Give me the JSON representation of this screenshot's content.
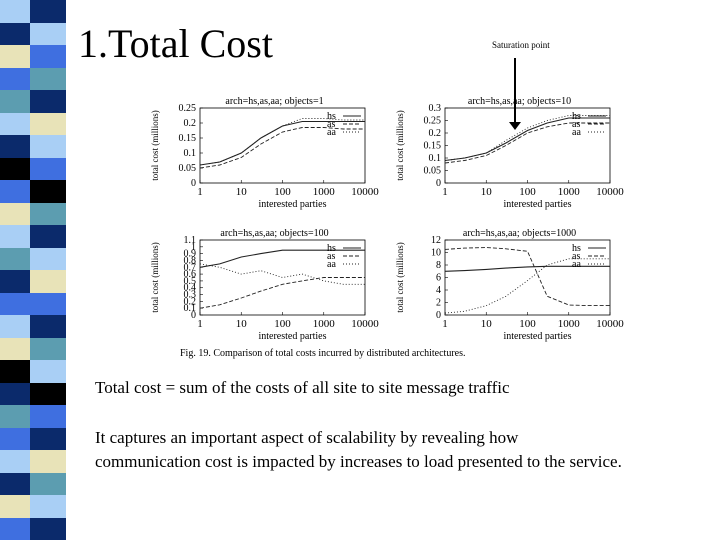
{
  "slide": {
    "title": "1.Total Cost",
    "annotation": "Saturation point",
    "caption": "Fig. 19.   Comparison of total costs incurred by distributed architectures.",
    "paragraph1": "Total cost = sum of the costs of all site to site message traffic",
    "paragraph2_line1": "It captures an important aspect of scalability by revealing how",
    "paragraph2_line2": "communication cost is impacted by increases to load presented to the service."
  },
  "colors": {
    "stripe_dark": "#0b2a6b",
    "stripe_blue": "#3f6fe0",
    "stripe_light": "#a9cff5",
    "stripe_teal": "#5c9db0",
    "stripe_cream": "#e8e3b8",
    "stripe_black": "#000000"
  },
  "chart_data": [
    {
      "type": "line",
      "title": "arch=hs,as,aa; objects=1",
      "xlabel": "interested parties",
      "ylabel": "total cost (millions)",
      "xscale": "log",
      "x": [
        1,
        3,
        10,
        30,
        100,
        300,
        1000,
        3000,
        10000
      ],
      "x_ticks": [
        "1",
        "10",
        "100",
        "1000",
        "10000"
      ],
      "y_ticks": [
        "0",
        "0.05",
        "0.1",
        "0.15",
        "0.2",
        "0.25"
      ],
      "ylim": [
        0,
        0.25
      ],
      "legend": "right",
      "series": [
        {
          "name": "hs",
          "values": [
            0.06,
            0.07,
            0.1,
            0.15,
            0.19,
            0.205,
            0.205,
            0.205,
            0.205
          ]
        },
        {
          "name": "as",
          "values": [
            0.05,
            0.06,
            0.085,
            0.13,
            0.17,
            0.185,
            0.185,
            0.18,
            0.18
          ]
        },
        {
          "name": "aa",
          "values": [
            0.06,
            0.07,
            0.1,
            0.15,
            0.19,
            0.215,
            0.215,
            0.21,
            0.21
          ]
        }
      ]
    },
    {
      "type": "line",
      "title": "arch=hs,as,aa; objects=10",
      "xlabel": "interested parties",
      "ylabel": "total cost (millions)",
      "xscale": "log",
      "x": [
        1,
        3,
        10,
        30,
        100,
        300,
        1000,
        3000,
        10000
      ],
      "x_ticks": [
        "1",
        "10",
        "100",
        "1000",
        "10000"
      ],
      "y_ticks": [
        "0",
        "0.05",
        "0.1",
        "0.15",
        "0.2",
        "0.25",
        "0.3"
      ],
      "ylim": [
        0,
        0.3
      ],
      "legend": "right",
      "series": [
        {
          "name": "hs",
          "values": [
            0.09,
            0.1,
            0.12,
            0.16,
            0.21,
            0.24,
            0.26,
            0.26,
            0.26
          ]
        },
        {
          "name": "as",
          "values": [
            0.08,
            0.09,
            0.11,
            0.15,
            0.2,
            0.225,
            0.24,
            0.24,
            0.24
          ]
        },
        {
          "name": "aa",
          "values": [
            0.09,
            0.1,
            0.12,
            0.17,
            0.22,
            0.25,
            0.27,
            0.27,
            0.27
          ]
        }
      ]
    },
    {
      "type": "line",
      "title": "arch=hs,as,aa; objects=100",
      "xlabel": "interested parties",
      "ylabel": "total cost (millions)",
      "xscale": "log",
      "x": [
        1,
        3,
        10,
        30,
        100,
        300,
        1000,
        3000,
        10000
      ],
      "x_ticks": [
        "1",
        "10",
        "100",
        "1000",
        "10000"
      ],
      "y_ticks": [
        "0",
        "0.1",
        "0.2",
        "0.3",
        "0.4",
        "0.5",
        "0.6",
        "0.7",
        "0.8",
        "0.9",
        "1",
        "1.1"
      ],
      "ylim": [
        0,
        1.1
      ],
      "legend": "right",
      "series": [
        {
          "name": "hs",
          "values": [
            0.7,
            0.75,
            0.85,
            0.9,
            0.95,
            0.95,
            0.95,
            0.95,
            0.95
          ]
        },
        {
          "name": "as",
          "values": [
            0.1,
            0.15,
            0.25,
            0.35,
            0.45,
            0.5,
            0.55,
            0.55,
            0.55
          ]
        },
        {
          "name": "aa",
          "values": [
            0.75,
            0.7,
            0.6,
            0.65,
            0.55,
            0.6,
            0.5,
            0.45,
            0.45
          ]
        }
      ]
    },
    {
      "type": "line",
      "title": "arch=hs,as,aa; objects=1000",
      "xlabel": "interested parties",
      "ylabel": "total cost (millions)",
      "xscale": "log",
      "x": [
        1,
        3,
        10,
        30,
        100,
        300,
        1000,
        3000,
        10000
      ],
      "x_ticks": [
        "1",
        "10",
        "100",
        "1000",
        "10000"
      ],
      "y_ticks": [
        "0",
        "2",
        "4",
        "6",
        "8",
        "10",
        "12"
      ],
      "ylim": [
        0,
        12
      ],
      "legend": "right",
      "series": [
        {
          "name": "hs",
          "values": [
            7,
            7.1,
            7.3,
            7.5,
            7.7,
            7.8,
            7.8,
            7.8,
            7.8
          ]
        },
        {
          "name": "as",
          "values": [
            10.5,
            10.7,
            10.8,
            10.6,
            10.2,
            3,
            1.6,
            1.5,
            1.5
          ]
        },
        {
          "name": "aa",
          "values": [
            0.3,
            0.6,
            1.5,
            3,
            5.5,
            8,
            9,
            9,
            9
          ]
        }
      ]
    }
  ]
}
